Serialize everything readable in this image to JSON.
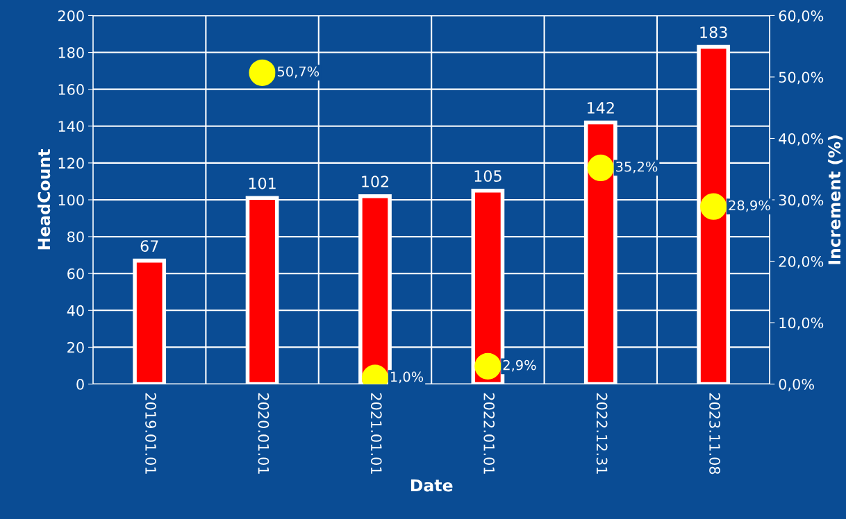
{
  "chart_data": {
    "type": "bar",
    "xlabel": "Date",
    "ylabel": "HeadCount",
    "y2label": "Increment (%)",
    "categories": [
      "2019.01.01",
      "2020.01.01",
      "2021.01.01",
      "2022.01.01",
      "2022.12.31",
      "2023.11.08"
    ],
    "series": [
      {
        "color": "#ff0000",
        "values": [
          67,
          101,
          102,
          105,
          142,
          183
        ],
        "value_labels": [
          "67",
          "101",
          "102",
          "105",
          "142",
          "183"
        ]
      },
      {
        "type": "scatter",
        "axis": "y2",
        "color": "#ffff00",
        "marker": "circle",
        "values": [
          null,
          50.7,
          1.0,
          2.9,
          35.2,
          28.9
        ],
        "value_labels": [
          null,
          "50,7%",
          "1,0%",
          "2,9%",
          "35,2%",
          "28,9%"
        ]
      }
    ],
    "ylim": [
      0,
      200
    ],
    "yticks": [
      0,
      20,
      40,
      60,
      80,
      100,
      120,
      140,
      160,
      180,
      200
    ],
    "y2lim": [
      0,
      60
    ],
    "y2ticks": [
      {
        "value": 0,
        "label": "0,0%"
      },
      {
        "value": 10,
        "label": "10,0%"
      },
      {
        "value": 20,
        "label": "20,0%"
      },
      {
        "value": 30,
        "label": "30,0%"
      },
      {
        "value": 40,
        "label": "40,0%"
      },
      {
        "value": 50,
        "label": "50,0%"
      },
      {
        "value": 60,
        "label": "60,0%"
      }
    ],
    "grid": true,
    "legend": false
  }
}
